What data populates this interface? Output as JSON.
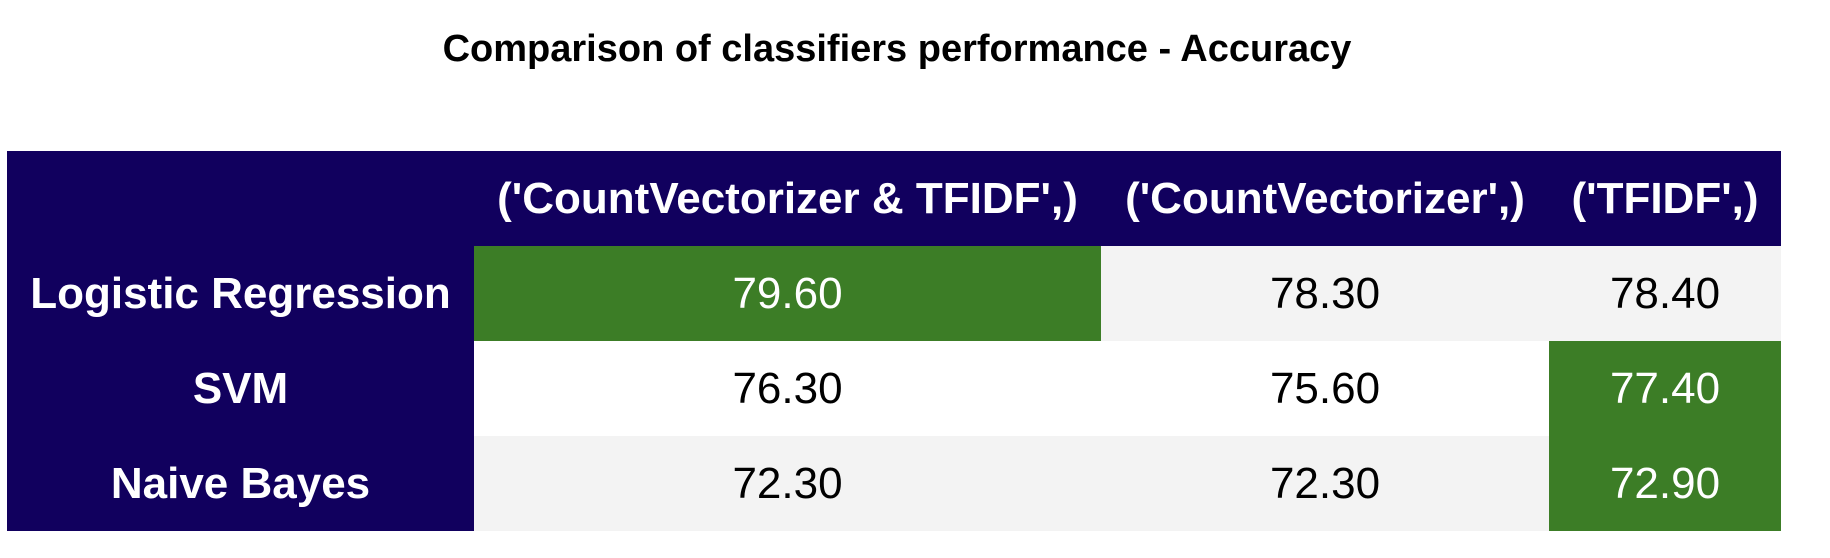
{
  "chart_data": {
    "type": "table",
    "title": "Comparison of classifiers performance - Accuracy",
    "columns": [
      "('CountVectorizer & TFIDF',)",
      "('CountVectorizer',)",
      "('TFIDF',)"
    ],
    "rows": [
      {
        "label": "Logistic Regression",
        "values": [
          "79.60",
          "78.30",
          "78.40"
        ]
      },
      {
        "label": "SVM",
        "values": [
          "76.30",
          "75.60",
          "77.40"
        ]
      },
      {
        "label": "Naive Bayes",
        "values": [
          "72.30",
          "72.30",
          "72.90"
        ]
      }
    ],
    "highlight": "row max"
  },
  "colors": {
    "header_bg": "#11005e",
    "highlight_bg": "#3c7d26",
    "stripe_bg": "#f3f3f3"
  }
}
